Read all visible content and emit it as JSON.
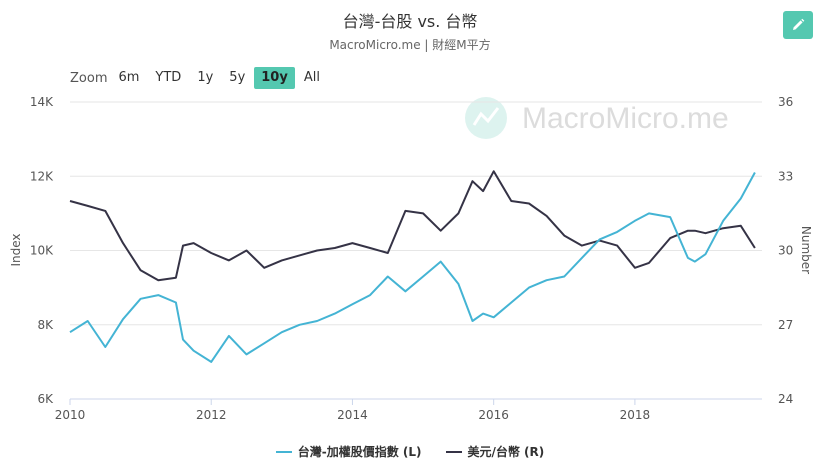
{
  "header": {
    "title": "台灣-台股 vs. 台幣",
    "subtitle": "MacroMicro.me | 財經M平方"
  },
  "watermark": {
    "text": "MacroMicro.me"
  },
  "zoom": {
    "label": "Zoom",
    "options": [
      "6m",
      "YTD",
      "1y",
      "5y",
      "10y",
      "All"
    ],
    "active": "10y"
  },
  "colors": {
    "taiex": "#44b4d4",
    "usdtwd": "#353346",
    "accent": "#54c8b0"
  },
  "icons": {
    "edit": "pencil-icon",
    "watermark": "chart-logo-icon"
  },
  "chart_data": {
    "type": "line",
    "x": [
      2010.0,
      2010.25,
      2010.5,
      2010.75,
      2011.0,
      2011.25,
      2011.5,
      2011.6,
      2011.75,
      2012.0,
      2012.25,
      2012.5,
      2012.75,
      2013.0,
      2013.25,
      2013.5,
      2013.75,
      2014.0,
      2014.25,
      2014.5,
      2014.75,
      2015.0,
      2015.25,
      2015.5,
      2015.7,
      2015.85,
      2016.0,
      2016.25,
      2016.5,
      2016.75,
      2017.0,
      2017.25,
      2017.5,
      2017.75,
      2018.0,
      2018.2,
      2018.5,
      2018.75,
      2018.85,
      2019.0,
      2019.25,
      2019.5,
      2019.7
    ],
    "series": [
      {
        "name": "台灣-加權股價指數 (L)",
        "axis": "left",
        "values": [
          7800,
          8100,
          7400,
          8150,
          8700,
          8800,
          8600,
          7600,
          7300,
          7000,
          7700,
          7200,
          7500,
          7800,
          8000,
          8100,
          8300,
          8550,
          8800,
          9300,
          8900,
          9300,
          9700,
          9100,
          8100,
          8300,
          8200,
          8600,
          9000,
          9200,
          9300,
          9800,
          10300,
          10500,
          10800,
          11000,
          10900,
          9800,
          9700,
          9900,
          10800,
          11400,
          12100
        ]
      },
      {
        "name": "美元/台幣 (R)",
        "axis": "right",
        "values": [
          32.0,
          31.8,
          31.6,
          30.3,
          29.2,
          28.8,
          28.9,
          30.2,
          30.3,
          29.9,
          29.6,
          30.0,
          29.3,
          29.6,
          29.8,
          30.0,
          30.1,
          30.3,
          30.1,
          29.9,
          31.6,
          31.5,
          30.8,
          31.5,
          32.8,
          32.4,
          33.2,
          32.0,
          31.9,
          31.4,
          30.6,
          30.2,
          30.4,
          30.2,
          29.3,
          29.5,
          30.5,
          30.8,
          30.8,
          30.7,
          30.9,
          31.0,
          30.1
        ]
      }
    ],
    "xlabel": "",
    "ylabel_left": "Index",
    "ylabel_right": "Number",
    "xlim": [
      2010.0,
      2019.8
    ],
    "ylim_left": [
      6000,
      14000
    ],
    "ylim_right": [
      24,
      36
    ],
    "x_ticks": [
      2010,
      2012,
      2014,
      2016,
      2018
    ],
    "y_ticks_left": [
      "6K",
      "8K",
      "10K",
      "12K",
      "14K"
    ],
    "y_ticks_right": [
      "24",
      "27",
      "30",
      "33",
      "36"
    ],
    "grid": true,
    "legend_position": "bottom-center"
  }
}
